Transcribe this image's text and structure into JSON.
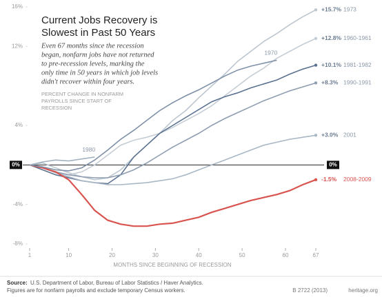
{
  "chart_data": {
    "type": "line",
    "title": [
      "Current Jobs Recovery is",
      "Slowest in Past 50 Years"
    ],
    "subtitle": [
      "Even 67 months since the recession",
      "began, nonfarm jobs have not returned",
      "to pre-recession levels, marking the",
      "only time in 50 years in which job levels",
      "didn't recover within four years."
    ],
    "y_label": [
      "PERCENT CHANGE IN NONFARM",
      "PAYROLLS SINCE START OF",
      "RECESSION"
    ],
    "x_label": "MONTHS SINCE BEGINNING OF RECESSION",
    "source": "U.S. Department of Labor, Bureau of Labor Statistics / Haver Analytics.",
    "source_label": "Source:",
    "note": "Figures are for nonfarm payrolls and exclude temporary Census workers.",
    "code": "B 2722 (2013)",
    "site": "heritage.org",
    "x": [
      1,
      4,
      7,
      10,
      13,
      16,
      19,
      22,
      25,
      28,
      31,
      34,
      37,
      40,
      43,
      46,
      49,
      52,
      55,
      58,
      61,
      64,
      67
    ],
    "xlim": [
      1,
      67
    ],
    "xticks": [
      1,
      10,
      20,
      30,
      40,
      50,
      60,
      67
    ],
    "ylim": [
      -8,
      16
    ],
    "yticks": [
      {
        "value": -8,
        "label": "-8%"
      },
      {
        "value": -4,
        "label": "-4%"
      },
      {
        "value": 0,
        "label": "0%"
      },
      {
        "value": 4,
        "label": "4%"
      },
      {
        "value": 12,
        "label": "12%"
      },
      {
        "value": 16,
        "label": "16%"
      }
    ],
    "series": [
      {
        "name": "1973",
        "color": "#bcc6cf",
        "values": [
          0,
          0.2,
          -0.3,
          -0.8,
          -1.2,
          -1.5,
          -1.3,
          -0.5,
          0.8,
          2,
          3.2,
          4.5,
          5.5,
          6.8,
          8,
          9.2,
          10.5,
          11.5,
          12.5,
          13.3,
          14.2,
          15,
          15.7
        ],
        "value_labels": [
          null,
          null,
          null,
          null,
          null,
          null,
          null,
          null,
          null,
          null,
          null,
          null,
          null,
          null,
          null,
          null,
          null,
          null,
          null,
          null,
          null,
          null,
          "+15.7%"
        ]
      },
      {
        "name": "1960-1961",
        "color": "#c5cdd5",
        "values": [
          0,
          -0.3,
          -0.8,
          -1,
          -0.7,
          0,
          1,
          2,
          2.5,
          2.8,
          3.2,
          3.8,
          4.5,
          5.2,
          6,
          7,
          8,
          9,
          9.8,
          10.8,
          11.5,
          12.2,
          12.8
        ],
        "value_labels": [
          null,
          null,
          null,
          null,
          null,
          null,
          null,
          null,
          null,
          null,
          null,
          null,
          null,
          null,
          null,
          null,
          null,
          null,
          null,
          null,
          null,
          null,
          "+12.8%"
        ]
      },
      {
        "name": "1981-1982",
        "color": "#5b7391",
        "values": [
          0,
          -0.5,
          -1,
          -1.3,
          -1.6,
          -1.8,
          -1.9,
          -1,
          0.8,
          2,
          3.2,
          4,
          4.8,
          5.6,
          6.4,
          6.9,
          7.3,
          7.8,
          8.2,
          8.6,
          9.2,
          9.7,
          10.1
        ],
        "value_labels": [
          null,
          null,
          null,
          null,
          null,
          null,
          null,
          null,
          null,
          null,
          null,
          null,
          null,
          null,
          null,
          null,
          null,
          null,
          null,
          null,
          null,
          null,
          "+10.1%"
        ]
      },
      {
        "name": "1990-1991",
        "color": "#8e9db0",
        "values": [
          0,
          -0.3,
          -0.7,
          -1,
          -1.2,
          -1.3,
          -1.3,
          -1,
          -0.5,
          0.2,
          1,
          1.8,
          2.5,
          3.2,
          4,
          4.7,
          5.3,
          5.9,
          6.5,
          7,
          7.5,
          7.9,
          8.3
        ],
        "value_labels": [
          null,
          null,
          null,
          null,
          null,
          null,
          null,
          null,
          null,
          null,
          null,
          null,
          null,
          null,
          null,
          null,
          null,
          null,
          null,
          null,
          null,
          null,
          "+8.3%"
        ]
      },
      {
        "name": "2001",
        "color": "#a9b7c5",
        "values": [
          0,
          -0.3,
          -0.8,
          -1.2,
          -1.6,
          -1.8,
          -2,
          -2,
          -1.9,
          -1.8,
          -1.6,
          -1.4,
          -1,
          -0.5,
          0,
          0.5,
          1,
          1.5,
          2,
          2.3,
          2.6,
          2.8,
          3.0
        ],
        "value_labels": [
          null,
          null,
          null,
          null,
          null,
          null,
          null,
          null,
          null,
          null,
          null,
          null,
          null,
          null,
          null,
          null,
          null,
          null,
          null,
          null,
          null,
          null,
          "+3.0%"
        ]
      },
      {
        "name": "2008-2009",
        "color": "#d9534f",
        "values": [
          0,
          -0.3,
          -0.7,
          -1.5,
          -3,
          -4.6,
          -5.6,
          -6,
          -6.2,
          -6.2,
          -6,
          -5.9,
          -5.6,
          -5.3,
          -4.8,
          -4.4,
          -4,
          -3.6,
          -3.3,
          -3,
          -2.6,
          -2,
          -1.5
        ],
        "value_labels": [
          null,
          null,
          null,
          null,
          null,
          null,
          null,
          null,
          null,
          null,
          null,
          null,
          null,
          null,
          null,
          null,
          null,
          null,
          null,
          null,
          null,
          null,
          "-1.5%"
        ]
      },
      {
        "name": "1970",
        "color": "#7e90a7",
        "values": [
          0,
          -0.2,
          -0.5,
          -0.6,
          -0.3,
          0.5,
          1.5,
          2.6,
          3.5,
          4.5,
          5.5,
          6.3,
          7,
          7.6,
          8.3,
          9,
          9.6,
          10,
          10.3,
          10.6,
          null,
          null,
          null
        ]
      },
      {
        "name": "1980",
        "color": "#a3b2c1",
        "values": [
          0,
          0.3,
          0.5,
          0.4,
          0.6,
          0.8,
          null,
          null,
          null,
          null,
          null,
          null,
          null,
          null,
          null,
          null,
          null,
          null,
          null,
          null,
          null,
          null,
          null
        ]
      }
    ]
  }
}
